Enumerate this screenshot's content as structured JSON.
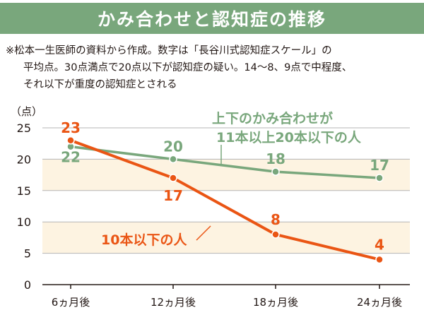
{
  "header": {
    "title": "かみ合わせと認知症の推移"
  },
  "note": {
    "line1": "※松本一生医師の資料から作成。数字は「長谷川式認知症スケール」の",
    "line2": "平均点。30点満点で20点以下が認知症の疑い。14〜8、9点で中程度、",
    "line3": "それ以下が重度の認知症とされる"
  },
  "colors": {
    "green": "#79a77c",
    "orange": "#ea5514",
    "band": "#fdf3e1",
    "title_bg": "#79a77c"
  },
  "chart_data": {
    "type": "line",
    "unit_label": "（点）",
    "categories": [
      "6ヵ月後",
      "12ヵ月後",
      "18ヵ月後",
      "24ヵ月後"
    ],
    "yticks": [
      0,
      5,
      10,
      15,
      20,
      25
    ],
    "ylim": [
      0,
      25
    ],
    "series": [
      {
        "name_line1": "上下のかみ合わせが",
        "name_line2": "11本以上20本以下の人",
        "color": "#79a77c",
        "values": [
          22,
          20,
          18,
          17
        ]
      },
      {
        "name": "10本以下の人",
        "color": "#ea5514",
        "values": [
          23,
          17,
          8,
          4
        ]
      }
    ],
    "grid": true
  }
}
